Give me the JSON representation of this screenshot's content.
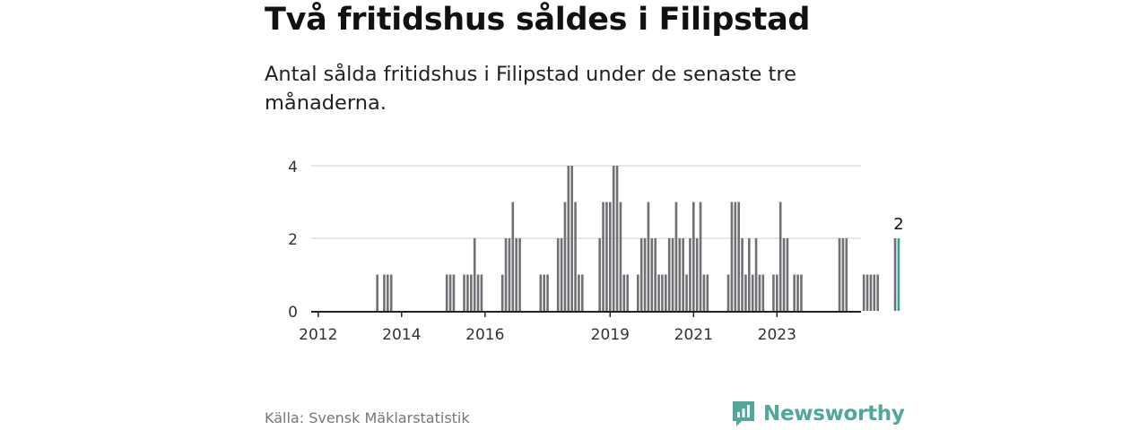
{
  "header": {
    "title": "Två fritidshus såldes i Filipstad",
    "subtitle": "Antal sålda fritidshus i Filipstad under de senaste tre månaderna."
  },
  "footer": {
    "source": "Källa: Svensk Mäklarstatistik",
    "brand": "Newsworthy",
    "brand_icon": "bar-chart-speech-bubble-icon"
  },
  "colors": {
    "bar": "#707075",
    "highlight": "#2aa69a",
    "grid": "#d9d9d9",
    "axis": "#222222",
    "brand": "#4fa89a"
  },
  "chart_data": {
    "type": "bar",
    "x_start": "2012-01",
    "period": "monthly",
    "ylim": [
      0,
      4
    ],
    "yticks": [
      0,
      2,
      4
    ],
    "xticks": [
      "2012",
      "2014",
      "2016",
      "2019",
      "2021",
      "2023"
    ],
    "grid": true,
    "values": [
      0,
      0,
      0,
      0,
      0,
      0,
      0,
      0,
      0,
      0,
      0,
      0,
      0,
      0,
      0,
      0,
      0,
      1,
      0,
      1,
      1,
      1,
      0,
      0,
      0,
      0,
      0,
      0,
      0,
      0,
      0,
      0,
      0,
      0,
      0,
      0,
      0,
      1,
      1,
      1,
      0,
      0,
      1,
      1,
      1,
      2,
      1,
      1,
      0,
      0,
      0,
      0,
      0,
      1,
      2,
      2,
      3,
      2,
      2,
      0,
      0,
      0,
      0,
      0,
      1,
      1,
      1,
      0,
      0,
      2,
      2,
      3,
      4,
      4,
      3,
      1,
      1,
      0,
      0,
      0,
      0,
      2,
      3,
      3,
      3,
      4,
      4,
      3,
      1,
      1,
      0,
      0,
      1,
      2,
      2,
      3,
      2,
      2,
      1,
      1,
      1,
      2,
      2,
      3,
      2,
      2,
      1,
      2,
      3,
      2,
      3,
      1,
      1,
      0,
      0,
      0,
      0,
      0,
      1,
      3,
      3,
      3,
      2,
      1,
      2,
      1,
      2,
      1,
      1,
      0,
      0,
      1,
      1,
      3,
      2,
      2,
      0,
      1,
      1,
      1,
      0,
      0,
      0,
      0,
      0,
      0,
      0,
      0,
      0,
      0,
      2,
      2,
      2,
      0,
      0,
      0,
      0,
      1,
      1,
      1,
      1,
      1,
      0,
      0,
      0,
      0,
      2,
      2
    ],
    "highlight_index": 167,
    "highlight_label": "2"
  }
}
